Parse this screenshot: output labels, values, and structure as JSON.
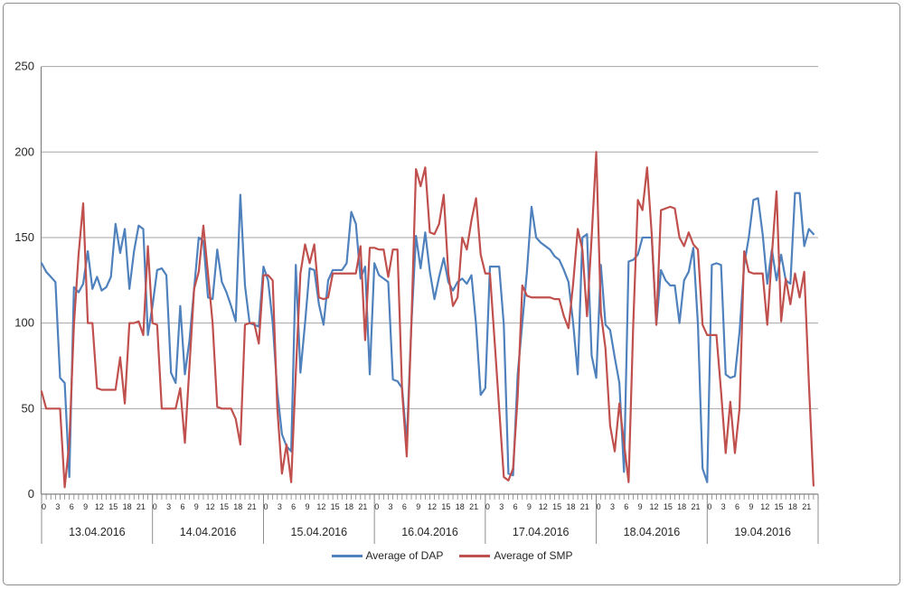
{
  "chart_data": {
    "type": "line",
    "title": "",
    "grid": true,
    "legend_position": "bottom",
    "y_axis": {
      "min": 0,
      "max": 250,
      "step": 50,
      "tick_labels": [
        "0",
        "50",
        "100",
        "150",
        "200",
        "250"
      ]
    },
    "x_axis": {
      "dates": [
        "13.04.2016",
        "14.04.2016",
        "15.04.2016",
        "16.04.2016",
        "17.04.2016",
        "18.04.2016",
        "19.04.2016"
      ],
      "hour_tick_labels": [
        "0",
        "3",
        "6",
        "9",
        "12",
        "15",
        "18",
        "21"
      ],
      "hours_per_day": 24
    },
    "series": [
      {
        "name": "Average of DAP",
        "color": "#4F81BD",
        "values": [
          135,
          130,
          127,
          124,
          68,
          65,
          10,
          121,
          118,
          123,
          142,
          120,
          127,
          119,
          121,
          127,
          158,
          141,
          155,
          120,
          142,
          157,
          155,
          93,
          110,
          131,
          132,
          128,
          71,
          65,
          110,
          70,
          90,
          120,
          150,
          148,
          115,
          114,
          143,
          124,
          118,
          110,
          101,
          175,
          122,
          100,
          99,
          98,
          133,
          125,
          100,
          60,
          35,
          28,
          25,
          134,
          71,
          100,
          132,
          131,
          111,
          99,
          125,
          131,
          131,
          131,
          135,
          165,
          158,
          126,
          133,
          70,
          135,
          128,
          126,
          124,
          67,
          66,
          62,
          30,
          99,
          151,
          132,
          153,
          130,
          114,
          127,
          138,
          124,
          119,
          124,
          126,
          123,
          128,
          99,
          58,
          62,
          133,
          133,
          133,
          99,
          12,
          11,
          70,
          100,
          130,
          168,
          150,
          147,
          145,
          143,
          139,
          137,
          131,
          124,
          100,
          70,
          150,
          152,
          81,
          68,
          134,
          99,
          96,
          80,
          65,
          13,
          136,
          137,
          140,
          150,
          150,
          150,
          99,
          131,
          125,
          122,
          122,
          100,
          125,
          130,
          144,
          99,
          15,
          7,
          134,
          135,
          134,
          70,
          68,
          69,
          95,
          134,
          150,
          172,
          173,
          152,
          123,
          143,
          125,
          140,
          125,
          123,
          176,
          176,
          145,
          155,
          152
        ]
      },
      {
        "name": "Average of SMP",
        "color": "#C0504D",
        "values": [
          60,
          50,
          50,
          50,
          50,
          4,
          30,
          99,
          140,
          170,
          100,
          100,
          62,
          61,
          61,
          61,
          61,
          80,
          53,
          100,
          100,
          101,
          93,
          145,
          100,
          99,
          50,
          50,
          50,
          50,
          62,
          30,
          75,
          120,
          130,
          157,
          129,
          100,
          51,
          50,
          50,
          50,
          44,
          29,
          99,
          100,
          100,
          88,
          128,
          128,
          125,
          50,
          12,
          29,
          7,
          71,
          129,
          146,
          135,
          146,
          115,
          114,
          115,
          129,
          129,
          129,
          129,
          129,
          129,
          145,
          90,
          144,
          144,
          143,
          143,
          127,
          143,
          143,
          60,
          22,
          99,
          190,
          180,
          191,
          153,
          152,
          158,
          175,
          129,
          110,
          115,
          150,
          143,
          160,
          173,
          140,
          129,
          129,
          90,
          50,
          10,
          8,
          15,
          57,
          122,
          116,
          115,
          115,
          115,
          115,
          115,
          114,
          114,
          104,
          97,
          123,
          155,
          143,
          104,
          150,
          200,
          106,
          85,
          40,
          25,
          53,
          30,
          7,
          99,
          172,
          166,
          191,
          152,
          99,
          166,
          167,
          168,
          167,
          150,
          145,
          153,
          146,
          143,
          99,
          93,
          93,
          93,
          60,
          24,
          54,
          24,
          50,
          142,
          130,
          129,
          129,
          129,
          99,
          140,
          177,
          101,
          126,
          111,
          129,
          115,
          130,
          65,
          5
        ]
      }
    ]
  },
  "colors": {
    "background": "#FFFFFF",
    "frame_border": "#8C8C8C",
    "gridline": "#A6A6A6",
    "axis": "#808080",
    "text": "#262626"
  }
}
